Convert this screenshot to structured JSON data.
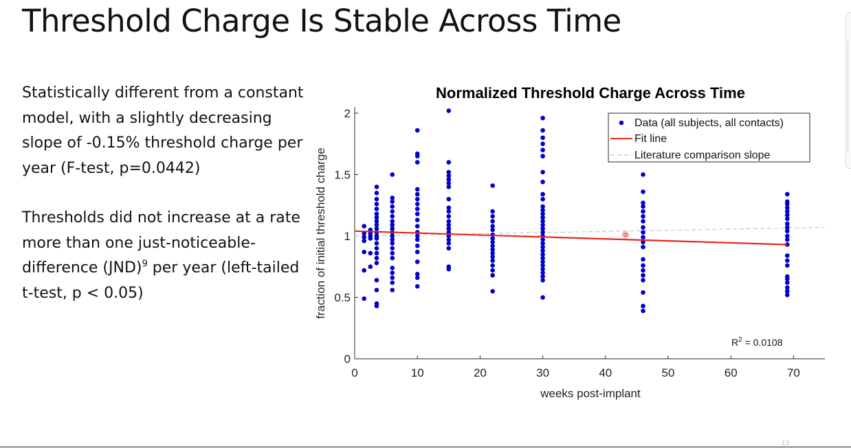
{
  "slide": {
    "title": "Threshold Charge Is Stable Across Time",
    "page_number": "13",
    "paragraph1": "Statistically different from a constant model, with a slightly decreasing slope of -0.15% threshold charge per year (F-test, p=0.0442)",
    "paragraph2_main": "Thresholds did not increase at a rate more than one just-noticeable-difference (JND)",
    "paragraph2_sup": "9",
    "paragraph2_tail": " per year (left-tailed t-test, p < 0.05)"
  },
  "chart_data": {
    "type": "scatter",
    "title": "Normalized Threshold Charge Across Time",
    "xlabel": "weeks post-implant",
    "ylabel": "fraction of initial threshold charge",
    "xlim": [
      0,
      75
    ],
    "ylim": [
      0,
      2.05
    ],
    "xticks": [
      0,
      10,
      20,
      30,
      40,
      50,
      60,
      70
    ],
    "yticks": [
      0,
      0.5,
      1,
      1.5,
      2
    ],
    "ytick_labels": [
      "0",
      "0.5",
      "1",
      "1.5",
      "2"
    ],
    "grid": false,
    "legend_position": "top-right",
    "legend": {
      "data": "Data (all subjects, all contacts)",
      "fit": "Fit line",
      "literature": "Literature comparison slope"
    },
    "annotation": {
      "prefix": "R",
      "sup": "2",
      "suffix": " = 0.0108"
    },
    "colors": {
      "data": "#0000cc",
      "fit": "#e8251a",
      "literature": "#c8c8c8",
      "highlight": "#e03030"
    },
    "fit_line": {
      "x": [
        0,
        69
      ],
      "y": [
        1.04,
        0.93
      ]
    },
    "literature_line": {
      "x": [
        0,
        75
      ],
      "y": [
        1.0,
        1.07
      ]
    },
    "highlight_point": {
      "x": 43.2,
      "y": 1.01
    },
    "series": [
      {
        "x": 1.5,
        "y": [
          0.49,
          0.72,
          0.87,
          0.96,
          0.99,
          1.02,
          1.08
        ]
      },
      {
        "x": 2.5,
        "y": [
          0.75,
          0.86,
          0.98,
          1.0,
          1.02,
          1.05
        ]
      },
      {
        "x": 3.5,
        "y": [
          0.43,
          0.45,
          0.56,
          0.64,
          0.78,
          0.82,
          0.86,
          0.9,
          0.94,
          0.98,
          1.0,
          1.03,
          1.06,
          1.09,
          1.12,
          1.15,
          1.18,
          1.22,
          1.26,
          1.3,
          1.35,
          1.4
        ]
      },
      {
        "x": 6,
        "y": [
          0.56,
          0.62,
          0.66,
          0.7,
          0.74,
          0.82,
          0.86,
          0.9,
          0.94,
          0.97,
          1.0,
          1.03,
          1.06,
          1.09,
          1.12,
          1.16,
          1.2,
          1.24,
          1.28,
          1.31,
          1.5
        ]
      },
      {
        "x": 10,
        "y": [
          0.59,
          0.66,
          0.69,
          0.79,
          0.87,
          0.92,
          0.97,
          1.0,
          1.03,
          1.08,
          1.13,
          1.18,
          1.22,
          1.26,
          1.3,
          1.34,
          1.38,
          1.6,
          1.65,
          1.67,
          1.86
        ]
      },
      {
        "x": 15,
        "y": [
          0.73,
          0.75,
          0.9,
          0.94,
          0.97,
          1.0,
          1.03,
          1.06,
          1.09,
          1.12,
          1.16,
          1.2,
          1.23,
          1.3,
          1.4,
          1.43,
          1.46,
          1.49,
          1.52,
          1.6,
          2.02
        ]
      },
      {
        "x": 22,
        "y": [
          0.55,
          0.68,
          0.72,
          0.76,
          0.8,
          0.83,
          0.86,
          0.89,
          0.92,
          0.95,
          0.98,
          1.01,
          1.05,
          1.08,
          1.12,
          1.16,
          1.2,
          1.41
        ]
      },
      {
        "x": 30,
        "y": [
          0.5,
          0.64,
          0.67,
          0.7,
          0.73,
          0.76,
          0.79,
          0.82,
          0.85,
          0.88,
          0.91,
          0.94,
          0.97,
          1.0,
          1.03,
          1.06,
          1.09,
          1.12,
          1.15,
          1.18,
          1.21,
          1.24,
          1.3,
          1.34,
          1.44,
          1.52,
          1.65,
          1.7,
          1.75,
          1.8,
          1.86,
          1.96
        ]
      },
      {
        "x": 46,
        "y": [
          0.39,
          0.43,
          0.54,
          0.64,
          0.68,
          0.72,
          0.76,
          0.81,
          0.91,
          0.95,
          0.99,
          1.03,
          1.07,
          1.12,
          1.16,
          1.2,
          1.24,
          1.27,
          1.36,
          1.5
        ]
      },
      {
        "x": 69,
        "y": [
          0.52,
          0.55,
          0.58,
          0.62,
          0.65,
          0.67,
          0.76,
          0.8,
          0.84,
          0.93,
          0.97,
          1.0,
          1.04,
          1.07,
          1.1,
          1.14,
          1.17,
          1.2,
          1.23,
          1.26,
          1.28,
          1.34
        ]
      }
    ]
  }
}
